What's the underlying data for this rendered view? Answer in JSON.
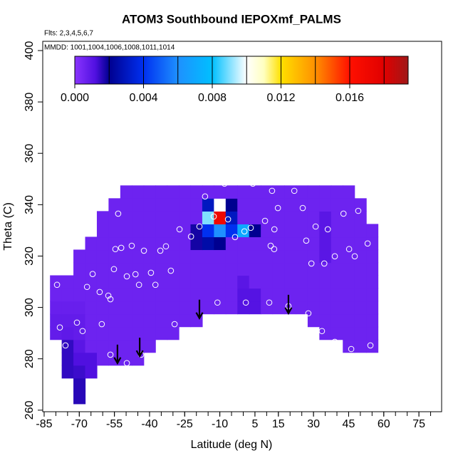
{
  "chart_data": {
    "type": "heatmap",
    "title": "ATOM3 Southbound IEPOXmf_PALMS",
    "annotations": [
      "Flts: 2,3,4,5,6,7",
      "MMDD: 1001,1004,1006,1008,1011,1014"
    ],
    "x_label": "Latitude (deg N)",
    "y_label": "Theta (C)",
    "xlim": [
      -85.6,
      84.7
    ],
    "ylim": [
      259.4,
      403.6
    ],
    "xticks": [
      -85,
      -70,
      -55,
      -40,
      -25,
      -10,
      5,
      15,
      30,
      45,
      60,
      75
    ],
    "xminorticks": [
      -85,
      -80,
      -75,
      -70,
      -65,
      -60,
      -55,
      -50,
      -45,
      -40,
      -35,
      -30,
      -25,
      -20,
      -15,
      -10,
      -5,
      0,
      5,
      10,
      15,
      20,
      25,
      30,
      35,
      40,
      45,
      50,
      55,
      60,
      65,
      70,
      75,
      80
    ],
    "yticks": [
      260,
      280,
      300,
      320,
      340,
      360,
      380,
      400
    ],
    "x": [
      -80,
      -75,
      -70,
      -65,
      -60,
      -55,
      -50,
      -45,
      -40,
      -35,
      -30,
      -25,
      -20,
      -15,
      -10,
      -5,
      0,
      5,
      10,
      15,
      20,
      25,
      30,
      35,
      40,
      45,
      50,
      55
    ],
    "y": [
      265,
      270,
      275,
      280,
      285,
      290,
      295,
      300,
      305,
      310,
      315,
      320,
      325,
      330,
      335,
      340,
      345
    ],
    "z": [
      [
        null,
        null,
        0.0016,
        null,
        null,
        null,
        null,
        null,
        null,
        null,
        null,
        null,
        null,
        null,
        null,
        null,
        null,
        null,
        null,
        null,
        null,
        null,
        null,
        null,
        null,
        null,
        null,
        null
      ],
      [
        null,
        null,
        0.0016,
        null,
        null,
        null,
        null,
        null,
        null,
        null,
        null,
        null,
        null,
        null,
        null,
        null,
        null,
        null,
        null,
        null,
        null,
        null,
        null,
        null,
        null,
        null,
        null,
        null
      ],
      [
        null,
        0.0015,
        0.0014,
        0.0012,
        null,
        null,
        null,
        null,
        null,
        null,
        null,
        null,
        null,
        null,
        null,
        null,
        null,
        null,
        null,
        null,
        null,
        null,
        null,
        null,
        null,
        null,
        null,
        null
      ],
      [
        null,
        0.0015,
        0.0012,
        0.0012,
        0.0006,
        0.0006,
        0.0006,
        0.0006,
        null,
        null,
        null,
        null,
        null,
        null,
        null,
        null,
        null,
        null,
        null,
        null,
        null,
        null,
        null,
        null,
        null,
        null,
        null,
        null
      ],
      [
        null,
        0.0015,
        0.001,
        0.0006,
        0.0006,
        0.0006,
        0.0006,
        0.0006,
        0.0006,
        null,
        null,
        null,
        null,
        null,
        null,
        null,
        null,
        null,
        null,
        null,
        null,
        null,
        null,
        null,
        null,
        0.0006,
        0.0006,
        0.0006
      ],
      [
        0.0008,
        0.0009,
        0.0008,
        0.0006,
        0.0006,
        0.0006,
        0.0006,
        0.0006,
        0.0006,
        0.0006,
        0.0006,
        null,
        null,
        null,
        null,
        null,
        null,
        null,
        null,
        null,
        null,
        null,
        null,
        0.0006,
        0.0006,
        0.0006,
        0.0006,
        0.0006
      ],
      [
        0.0008,
        0.0008,
        0.0008,
        0.0006,
        0.0006,
        0.0006,
        0.0006,
        0.0006,
        0.0006,
        0.0006,
        0.0006,
        0.0006,
        0.0006,
        null,
        null,
        null,
        null,
        null,
        null,
        null,
        null,
        null,
        0.0006,
        0.0006,
        0.0006,
        0.0006,
        0.0006,
        0.0006
      ],
      [
        0.0007,
        0.0007,
        0.0007,
        0.0006,
        0.0006,
        0.0006,
        0.0006,
        0.0006,
        0.0006,
        0.0006,
        0.0006,
        0.0006,
        0.0006,
        0.0006,
        0.0006,
        0.0006,
        0.0011,
        0.0011,
        0.0006,
        0.0006,
        0.0006,
        0.0006,
        0.0006,
        0.0006,
        0.0006,
        0.0006,
        0.0006,
        0.0006
      ],
      [
        0.0006,
        0.0006,
        0.0006,
        0.0006,
        0.0006,
        0.0006,
        0.0006,
        0.0006,
        0.0006,
        0.0006,
        0.0006,
        0.0006,
        0.0006,
        0.0006,
        0.0006,
        0.0006,
        0.0011,
        0.0011,
        0.0006,
        0.0006,
        0.0006,
        0.0006,
        0.0006,
        0.0006,
        0.0006,
        0.0006,
        0.0006,
        0.0006
      ],
      [
        0.0006,
        0.0006,
        0.0006,
        0.0006,
        0.0006,
        0.0006,
        0.0006,
        0.0006,
        0.0006,
        0.0006,
        0.0006,
        0.0006,
        0.0006,
        0.0006,
        0.0006,
        0.0006,
        0.001,
        0.0006,
        0.0006,
        0.0006,
        0.0006,
        0.0006,
        0.0006,
        0.0006,
        0.0006,
        0.0006,
        0.0006,
        0.0006
      ],
      [
        null,
        null,
        0.0006,
        0.0006,
        0.0006,
        0.0006,
        0.0006,
        0.0006,
        0.0006,
        0.0006,
        0.0006,
        0.0006,
        0.0006,
        0.0006,
        0.0006,
        0.0006,
        0.0006,
        0.0006,
        0.0006,
        0.0006,
        0.0006,
        0.0006,
        0.0006,
        0.0006,
        0.0006,
        0.0006,
        0.0006,
        0.0006
      ],
      [
        null,
        null,
        0.0006,
        0.0006,
        0.0006,
        0.0006,
        0.0006,
        0.0006,
        0.0006,
        0.0006,
        0.0006,
        0.0006,
        0.0006,
        0.0006,
        0.0006,
        0.0006,
        0.0006,
        0.0006,
        0.0006,
        0.0006,
        0.0006,
        0.0006,
        0.0006,
        0.001,
        0.0006,
        0.0006,
        0.0006,
        0.0006
      ],
      [
        null,
        null,
        null,
        0.0006,
        0.0006,
        0.0006,
        0.0006,
        0.0006,
        0.0006,
        0.0006,
        0.0006,
        0.0006,
        0.0018,
        0.0025,
        0.002,
        0.0006,
        0.0006,
        0.0006,
        0.0006,
        0.0006,
        0.0006,
        0.0006,
        0.0006,
        0.001,
        0.0006,
        0.0006,
        0.0006,
        0.0006
      ],
      [
        null,
        null,
        null,
        null,
        0.0006,
        0.0006,
        0.0006,
        0.0006,
        0.0006,
        0.0006,
        0.0006,
        0.0006,
        0.0018,
        0.004,
        0.006,
        0.004,
        0.007,
        0.002,
        0.0006,
        0.0006,
        0.0006,
        0.0006,
        0.0006,
        0.001,
        0.0006,
        0.0006,
        0.0006,
        0.0006
      ],
      [
        null,
        null,
        null,
        null,
        0.0006,
        0.0006,
        0.0006,
        0.0006,
        0.0006,
        0.0006,
        0.0006,
        0.0006,
        0.0006,
        0.009,
        0.017,
        0.003,
        0.0006,
        0.0006,
        0.0006,
        0.0006,
        0.0006,
        0.0006,
        0.0006,
        0.001,
        0.0006,
        0.0006,
        0.0006,
        null
      ],
      [
        null,
        null,
        null,
        null,
        null,
        0.0006,
        0.0006,
        0.0006,
        0.0006,
        0.0006,
        0.0006,
        0.0006,
        0.0006,
        0.003,
        0.01,
        0.002,
        0.0006,
        0.0006,
        0.0006,
        0.0006,
        0.0006,
        0.0006,
        0.0006,
        0.0006,
        0.0006,
        0.0006,
        0.0006,
        null
      ],
      [
        null,
        null,
        null,
        null,
        null,
        null,
        0.0006,
        0.0006,
        0.0006,
        0.0006,
        0.0006,
        0.0006,
        0.0006,
        0.0006,
        0.0006,
        0.0006,
        0.0006,
        0.0006,
        0.0006,
        0.0006,
        0.0006,
        0.0006,
        0.0006,
        0.0006,
        0.0006,
        0.0006,
        null,
        null
      ]
    ],
    "colorscale": [
      {
        "value": 0,
        "color": "#8a35ff"
      },
      {
        "value": 0.0012,
        "color": "#5010e0"
      },
      {
        "value": 0.002,
        "color": "#000090"
      },
      {
        "value": 0.004,
        "color": "#0030f0"
      },
      {
        "value": 0.006,
        "color": "#1e90ff"
      },
      {
        "value": 0.008,
        "color": "#00c0ff"
      },
      {
        "value": 0.01,
        "color": "#ffffff"
      },
      {
        "value": 0.011,
        "color": "#ffffc0"
      },
      {
        "value": 0.012,
        "color": "#ffe000"
      },
      {
        "value": 0.014,
        "color": "#ff9000"
      },
      {
        "value": 0.016,
        "color": "#ff1000"
      },
      {
        "value": 0.018,
        "color": "#e00000"
      },
      {
        "value": 0.0194,
        "color": "#a01818"
      }
    ],
    "colorbar": {
      "lim": [
        0,
        0.0194
      ],
      "ticks": [
        {
          "value": 0,
          "label": "0.000"
        },
        {
          "value": 0.004,
          "label": "0.004"
        },
        {
          "value": 0.008,
          "label": "0.008"
        },
        {
          "value": 0.012,
          "label": "0.012"
        },
        {
          "value": 0.016,
          "label": "0.016"
        }
      ],
      "breaks": [
        0.002,
        0.004,
        0.006,
        0.008,
        0.01,
        0.012,
        0.014,
        0.016,
        0.018
      ]
    },
    "points": {
      "color": "#ffffff",
      "x": [
        -79.5,
        -75.9,
        -78.3,
        -71,
        -68.6,
        -66.7,
        -64.3,
        -61.3,
        -60.4,
        -57.6,
        -56.7,
        -53.4,
        -55.2,
        -54.6,
        -52.1,
        -47.6,
        -49.7,
        -46,
        -44.5,
        -39.4,
        -42.4,
        -35.4,
        -33,
        -37.5,
        -27.2,
        -22.3,
        -30.9,
        -29.3,
        -18.7,
        -16.3,
        -12.6,
        -8,
        -6.5,
        -3.5,
        0.5,
        3.2,
        4.1,
        9.3,
        12.3,
        13.3,
        14.8,
        11.7,
        13.2,
        -11,
        1.1,
        11.1,
        19.3,
        27.8,
        33.6,
        39.1,
        46.1,
        54.3,
        25.4,
        30.9,
        36.1,
        29.1,
        34.6,
        39.1,
        42.8,
        45.2,
        47.6,
        26.9,
        21.8,
        49.1,
        53.1,
        -43.6,
        -56.7,
        -49.7
      ],
      "y": [
        308.8,
        285.2,
        292.2,
        294.1,
        290.8,
        308,
        313,
        306,
        293.5,
        304.6,
        303.2,
        336.5,
        314.9,
        322.7,
        323.2,
        324,
        312.1,
        312.9,
        308.8,
        313.5,
        322.1,
        322.1,
        323.8,
        308.8,
        330.4,
        327.6,
        314.3,
        293.5,
        331.5,
        343.2,
        335.4,
        348.2,
        334.3,
        327.4,
        329.6,
        331,
        348.2,
        333.7,
        345.4,
        330.4,
        338.7,
        324,
        322.7,
        301.9,
        301.9,
        301.9,
        300.5,
        297.7,
        290.8,
        286.6,
        283.8,
        285.2,
        338.7,
        331.5,
        330.4,
        317.1,
        317.1,
        319.9,
        336.5,
        322.7,
        319.9,
        326,
        345.4,
        337.6,
        324.9,
        281.6,
        281.6,
        278.3
      ]
    },
    "arrows": {
      "color": "#000000",
      "x": [
        -53.7,
        -44.2,
        -18.7,
        19.3
      ],
      "y": [
        278.3,
        281,
        295.8,
        297.7
      ]
    }
  }
}
